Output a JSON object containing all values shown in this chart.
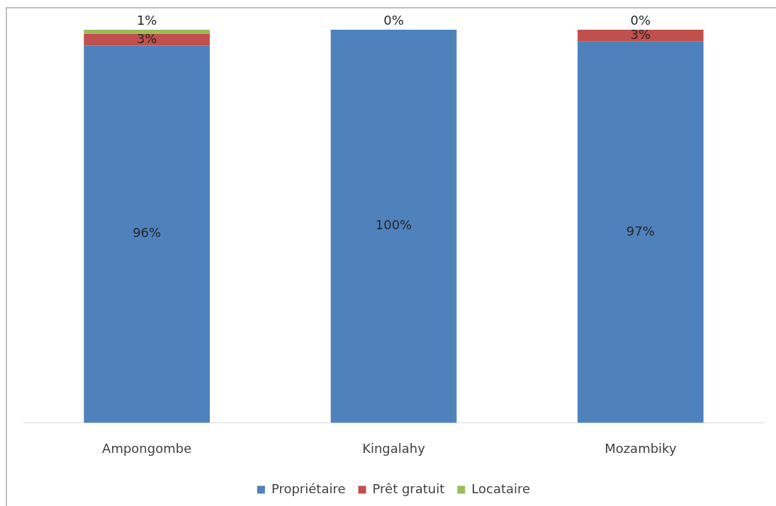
{
  "chart_data": {
    "type": "bar",
    "stacked": true,
    "legend": "bottom",
    "tick_labels": "x",
    "ylim": [
      0,
      100
    ],
    "categories": [
      "Ampongombe",
      "Kingalahy",
      "Mozambiky"
    ],
    "series": [
      {
        "name": "Propriétaire",
        "color": "#4f81bd",
        "values": [
          96,
          100,
          97
        ],
        "value_labels": [
          "96%",
          "100%",
          "97%"
        ]
      },
      {
        "name": "Prêt gratuit",
        "color": "#c0504d",
        "values": [
          3,
          0,
          3
        ],
        "value_labels": [
          "3%",
          "0%",
          "3%"
        ]
      },
      {
        "name": "Locataire",
        "color": "#9bbb59",
        "values": [
          1,
          null,
          0
        ],
        "value_labels": [
          "1%",
          null,
          "0%"
        ]
      }
    ]
  }
}
